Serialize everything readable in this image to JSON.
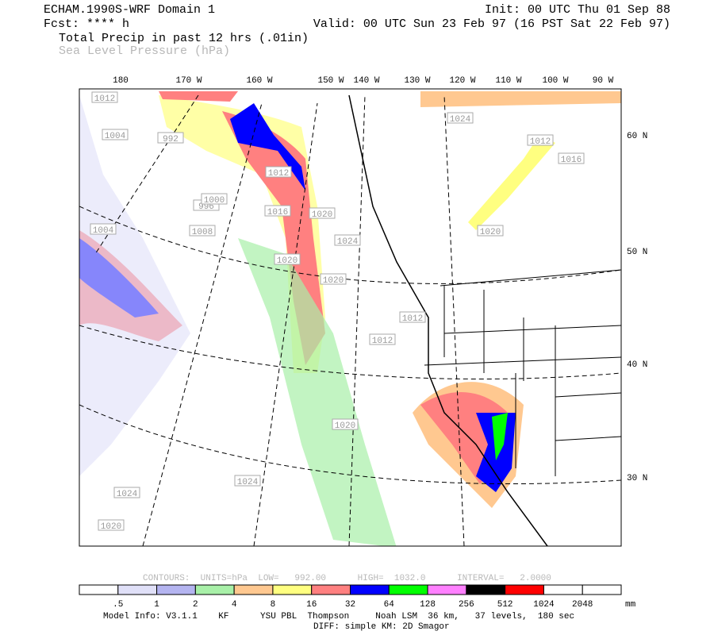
{
  "header": {
    "title": "ECHAM.1990S-WRF Domain 1",
    "init": "Init: 00 UTC Thu 01 Sep 88",
    "fcst": "Fcst: **** h",
    "valid": "Valid: 00 UTC Sun 23 Feb 97 (16 PST Sat 22 Feb 97)",
    "field1": "Total Precip in past 12 hrs (.01in)",
    "field2": "Sea Level Pressure (hPa)"
  },
  "map": {
    "lon_labels": [
      "180",
      "170 W",
      "160 W",
      "150 W",
      "140 W",
      "130 W",
      "120 W",
      "110 W",
      "100 W",
      "90 W"
    ],
    "lat_labels": [
      "60 N",
      "50 N",
      "40 N",
      "30 N"
    ],
    "contour_labels": [
      "1012",
      "992",
      "1004",
      "996",
      "1000",
      "1004",
      "1008",
      "1012",
      "1016",
      "1020",
      "1024",
      "1020",
      "1024",
      "1020",
      "1012",
      "1016",
      "1020",
      "1012",
      "1012",
      "1024",
      "1020",
      "1024",
      "1020"
    ]
  },
  "footer": {
    "contours": "CONTOURS:  UNITS=hPa  LOW=   992.00      HIGH=  1032.0      INTERVAL=   2.0000",
    "colorbar": {
      "colors": [
        "#ffffff",
        "#e0e0f8",
        "#b4b4f0",
        "#a8f0a8",
        "#ffc890",
        "#ffff80",
        "#ff8080",
        "#0000ff",
        "#00ff00",
        "#ff80ff",
        "#000000",
        "#ff0000",
        "#ffffff",
        "#ffffff"
      ],
      "labels": [
        ".5",
        "1",
        "2",
        "4",
        "8",
        "16",
        "32",
        "64",
        "128",
        "256",
        "512",
        "1024",
        "2048"
      ],
      "unit": "mm"
    },
    "model_info": "Model Info: V3.1.1    KF      YSU PBL  Thompson     Noah LSM  36 km,   37 levels,  180 sec",
    "diff": "DIFF: simple KM: 2D Smagor"
  }
}
